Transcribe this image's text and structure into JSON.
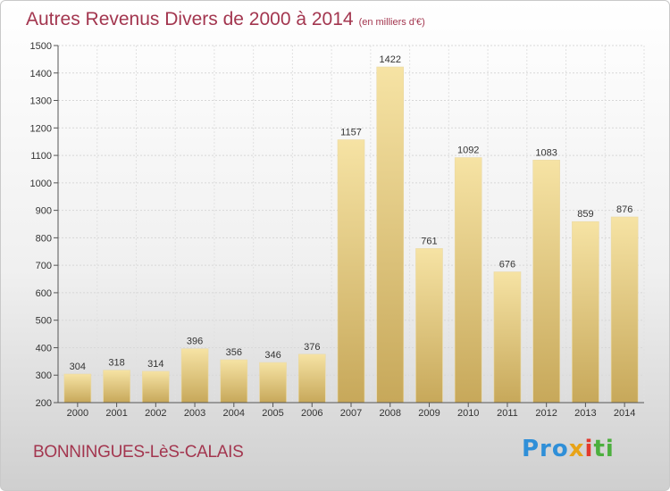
{
  "chart_data": {
    "type": "bar",
    "title": "Autres Revenus Divers de 2000 à 2014",
    "unit_note": "(en milliers d'€)",
    "categories": [
      "2000",
      "2001",
      "2002",
      "2003",
      "2004",
      "2005",
      "2006",
      "2007",
      "2008",
      "2009",
      "2010",
      "2011",
      "2012",
      "2013",
      "2014"
    ],
    "values": [
      304,
      318,
      314,
      396,
      356,
      346,
      376,
      1157,
      1422,
      761,
      1092,
      676,
      1083,
      859,
      876
    ],
    "ylim": [
      200,
      1500
    ],
    "yticks": [
      200,
      300,
      400,
      500,
      600,
      700,
      800,
      900,
      1000,
      1100,
      1200,
      1300,
      1400,
      1500
    ],
    "grid": true,
    "bar_color": "#eacd7d"
  },
  "footer": {
    "commune": "BONNINGUES-LèS-CALAIS",
    "logo_parts": [
      "Pro",
      "x",
      "i",
      "ti"
    ]
  },
  "colors": {
    "title": "#a3364f",
    "logo_blue": "#2f8fd8",
    "logo_orange": "#e8a317",
    "logo_red": "#e23a2e",
    "logo_green": "#4caf3e"
  }
}
